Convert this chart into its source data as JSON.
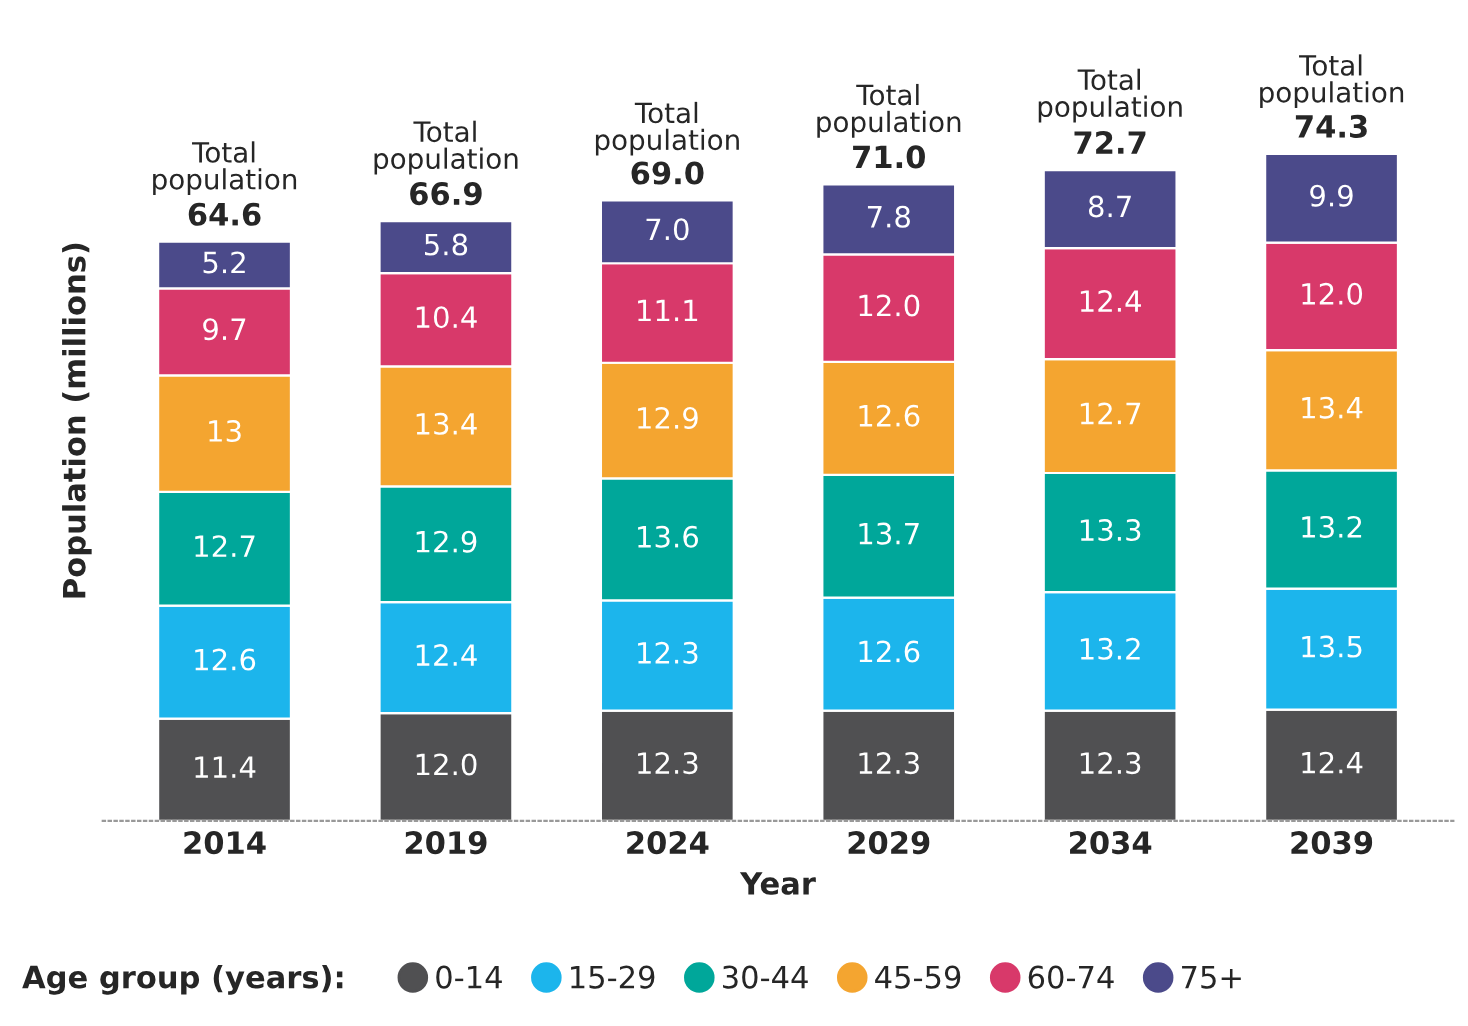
{
  "chart_data": {
    "type": "bar",
    "stacked": true,
    "xlabel": "Year",
    "ylabel": "Population (millions)",
    "legend_title": "Age group (years):",
    "legend": "bottom",
    "grid": false,
    "tick_labels": "x",
    "categories": [
      "2014",
      "2019",
      "2024",
      "2029",
      "2034",
      "2039"
    ],
    "series": [
      {
        "name": "0-14",
        "color": "#505052",
        "values": [
          11.4,
          12.0,
          12.3,
          12.3,
          12.3,
          12.4
        ],
        "value_labels": [
          "11.4",
          "12.0",
          "12.3",
          "12.3",
          "12.3",
          "12.4"
        ]
      },
      {
        "name": "15-29",
        "color": "#1cb5ec",
        "values": [
          12.6,
          12.4,
          12.3,
          12.6,
          13.2,
          13.5
        ],
        "value_labels": [
          "12.6",
          "12.4",
          "12.3",
          "12.6",
          "13.2",
          "13.5"
        ]
      },
      {
        "name": "30-44",
        "color": "#00a79a",
        "values": [
          12.7,
          12.9,
          13.6,
          13.7,
          13.3,
          13.2
        ],
        "value_labels": [
          "12.7",
          "12.9",
          "13.6",
          "13.7",
          "13.3",
          "13.2"
        ]
      },
      {
        "name": "45-59",
        "color": "#f4a530",
        "values": [
          13,
          13.4,
          12.9,
          12.6,
          12.7,
          13.4
        ],
        "value_labels": [
          "13",
          "13.4",
          "12.9",
          "12.6",
          "12.7",
          "13.4"
        ]
      },
      {
        "name": "60-74",
        "color": "#d8396a",
        "values": [
          9.7,
          10.4,
          11.1,
          12.0,
          12.4,
          12.0
        ],
        "value_labels": [
          "9.7",
          "10.4",
          "11.1",
          "12.0",
          "12.4",
          "12.0"
        ]
      },
      {
        "name": "75+",
        "color": "#4b4a8a",
        "values": [
          5.2,
          5.8,
          7.0,
          7.8,
          8.7,
          9.9
        ],
        "value_labels": [
          "5.2",
          "5.8",
          "7.0",
          "7.8",
          "8.7",
          "9.9"
        ]
      }
    ],
    "totals": [
      "64.6",
      "66.9",
      "69.0",
      "71.0",
      "72.7",
      "74.3"
    ],
    "annotations": [
      {
        "text": "Total population",
        "x": "2014",
        "y": 64.6
      },
      {
        "text": "Total population",
        "x": "2019",
        "y": 66.9
      },
      {
        "text": "Total population",
        "x": "2024",
        "y": 69.0
      },
      {
        "text": "Total population",
        "x": "2029",
        "y": 71.0
      },
      {
        "text": "Total population",
        "x": "2034",
        "y": 72.7
      },
      {
        "text": "Total population",
        "x": "2039",
        "y": 74.3
      }
    ]
  }
}
